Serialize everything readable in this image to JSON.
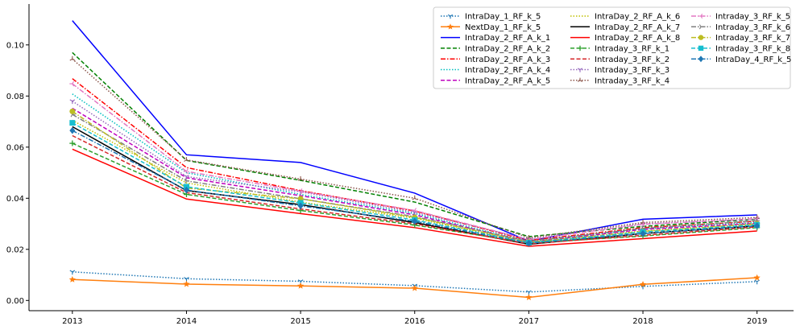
{
  "chart_data": {
    "type": "line",
    "title": "",
    "xlabel": "",
    "ylabel": "",
    "x": [
      "2013",
      "2014",
      "2015",
      "2016",
      "2017",
      "2018",
      "2019"
    ],
    "xlim": [
      2012.62,
      2019.32
    ],
    "ylim": [
      -0.004,
      0.116
    ],
    "yticks": [
      "0.00",
      "0.02",
      "0.04",
      "0.06",
      "0.08",
      "0.10"
    ],
    "grid": false,
    "legend_position": "top-right",
    "legend_columns": 3,
    "series": [
      {
        "name": "IntraDay_1_RF_k_5",
        "color": "#1f77b4",
        "dash": "dot",
        "marker": "tri_down",
        "values": [
          0.0112,
          0.0085,
          0.0075,
          0.0058,
          0.0033,
          0.0055,
          0.0074
        ]
      },
      {
        "name": "NextDay_1_RF_k_5",
        "color": "#ff7f0e",
        "dash": "solid",
        "marker": "star",
        "values": [
          0.0082,
          0.0064,
          0.0057,
          0.0048,
          0.0012,
          0.0063,
          0.0089
        ]
      },
      {
        "name": "IntraDay_2_RF_A_k_1",
        "color": "#0000ff",
        "dash": "solid",
        "marker": "none",
        "values": [
          0.1095,
          0.057,
          0.054,
          0.042,
          0.0232,
          0.0318,
          0.0335
        ]
      },
      {
        "name": "IntraDay_2_RF_A_k_2",
        "color": "#008000",
        "dash": "dashed",
        "marker": "none",
        "values": [
          0.097,
          0.0548,
          0.047,
          0.0385,
          0.025,
          0.029,
          0.0318
        ]
      },
      {
        "name": "IntraDay_2_RF_A_k_3",
        "color": "#ff0000",
        "dash": "dashdot",
        "marker": "none",
        "values": [
          0.0868,
          0.052,
          0.043,
          0.035,
          0.0235,
          0.0285,
          0.031
        ]
      },
      {
        "name": "IntraDay_2_RF_A_k_4",
        "color": "#00bfbf",
        "dash": "dot",
        "marker": "none",
        "values": [
          0.0808,
          0.05,
          0.0415,
          0.034,
          0.023,
          0.028,
          0.0305
        ]
      },
      {
        "name": "IntraDay_2_RF_A_k_5",
        "color": "#bf00bf",
        "dash": "dashed",
        "marker": "none",
        "values": [
          0.0752,
          0.048,
          0.041,
          0.0335,
          0.0228,
          0.0278,
          0.0302
        ]
      },
      {
        "name": "IntraDay_2_RF_A_k_6",
        "color": "#bfbf00",
        "dash": "dot",
        "marker": "none",
        "values": [
          0.0705,
          0.046,
          0.0385,
          0.0322,
          0.0226,
          0.0272,
          0.0298
        ]
      },
      {
        "name": "IntraDay_2_RF_A_k_7",
        "color": "#000000",
        "dash": "solid",
        "marker": "none",
        "values": [
          0.068,
          0.043,
          0.0375,
          0.0305,
          0.022,
          0.0262,
          0.0292
        ]
      },
      {
        "name": "IntraDay_2_RF_A_k_8",
        "color": "#ff0000",
        "dash": "solid",
        "marker": "none",
        "values": [
          0.0592,
          0.0397,
          0.034,
          0.0285,
          0.0212,
          0.0242,
          0.0272
        ]
      },
      {
        "name": "Intraday_3_RF_k_1",
        "color": "#2ca02c",
        "dash": "dashed",
        "marker": "plus",
        "values": [
          0.0615,
          0.0415,
          0.0352,
          0.0295,
          0.0225,
          0.0252,
          0.0285
        ]
      },
      {
        "name": "Intraday_3_RF_k_2",
        "color": "#d62728",
        "dash": "dashed",
        "marker": "none",
        "values": [
          0.0645,
          0.0422,
          0.0358,
          0.03,
          0.0222,
          0.0255,
          0.0288
        ]
      },
      {
        "name": "Intraday_3_RF_k_3",
        "color": "#9467bd",
        "dash": "dot",
        "marker": "tri_down",
        "values": [
          0.078,
          0.0485,
          0.0425,
          0.0345,
          0.024,
          0.03,
          0.0318
        ]
      },
      {
        "name": "Intraday_3_RF_k_4",
        "color": "#8c564b",
        "dash": "dot",
        "marker": "tri_up",
        "values": [
          0.0945,
          0.055,
          0.0475,
          0.04,
          0.0245,
          0.0305,
          0.0325
        ]
      },
      {
        "name": "Intraday_3_RF_k_5",
        "color": "#e377c2",
        "dash": "dashdot",
        "marker": "tri_left",
        "values": [
          0.0848,
          0.0505,
          0.0428,
          0.0352,
          0.0238,
          0.0298,
          0.032
        ]
      },
      {
        "name": "Intraday_3_RF_k_6",
        "color": "#7f7f7f",
        "dash": "dashdot",
        "marker": "tri_right",
        "values": [
          0.0728,
          0.0468,
          0.0398,
          0.0328,
          0.0232,
          0.0282,
          0.0312
        ]
      },
      {
        "name": "Intraday_3_RF_k_7",
        "color": "#bcbd22",
        "dash": "dashdot",
        "marker": "circle",
        "values": [
          0.074,
          0.044,
          0.0398,
          0.0325,
          0.0228,
          0.027,
          0.03
        ]
      },
      {
        "name": "Intraday_3_RF_k_8",
        "color": "#17becf",
        "dash": "dashed",
        "marker": "square",
        "values": [
          0.0695,
          0.0445,
          0.0382,
          0.0315,
          0.0226,
          0.0268,
          0.0296
        ]
      },
      {
        "name": "IntraDay_4_RF_k_5",
        "color": "#1f77b4",
        "dash": "dashdot",
        "marker": "diamond",
        "values": [
          0.0665,
          0.0432,
          0.037,
          0.031,
          0.0224,
          0.0262,
          0.0292
        ]
      }
    ]
  }
}
